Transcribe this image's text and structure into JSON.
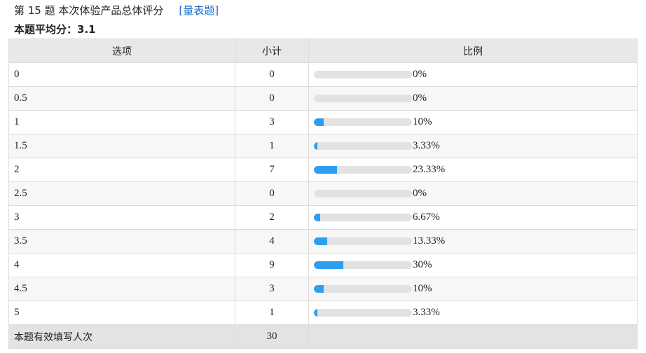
{
  "header": {
    "question": "第 15 题  本次体验产品总体评分",
    "type_link": "[量表题]",
    "average": "本题平均分：3.1"
  },
  "table": {
    "columns": [
      "选项",
      "小计",
      "比例"
    ],
    "rows": [
      {
        "option": "0",
        "count": 0,
        "percent": 0,
        "percent_label": "0%"
      },
      {
        "option": "0.5",
        "count": 0,
        "percent": 0,
        "percent_label": "0%"
      },
      {
        "option": "1",
        "count": 3,
        "percent": 10,
        "percent_label": "10%"
      },
      {
        "option": "1.5",
        "count": 1,
        "percent": 3.33,
        "percent_label": "3.33%"
      },
      {
        "option": "2",
        "count": 7,
        "percent": 23.33,
        "percent_label": "23.33%"
      },
      {
        "option": "2.5",
        "count": 0,
        "percent": 0,
        "percent_label": "0%"
      },
      {
        "option": "3",
        "count": 2,
        "percent": 6.67,
        "percent_label": "6.67%"
      },
      {
        "option": "3.5",
        "count": 4,
        "percent": 13.33,
        "percent_label": "13.33%"
      },
      {
        "option": "4",
        "count": 9,
        "percent": 30,
        "percent_label": "30%"
      },
      {
        "option": "4.5",
        "count": 3,
        "percent": 10,
        "percent_label": "10%"
      },
      {
        "option": "5",
        "count": 1,
        "percent": 3.33,
        "percent_label": "3.33%"
      }
    ],
    "footer": {
      "label": "本题有效填写人次",
      "count": 30
    }
  }
}
